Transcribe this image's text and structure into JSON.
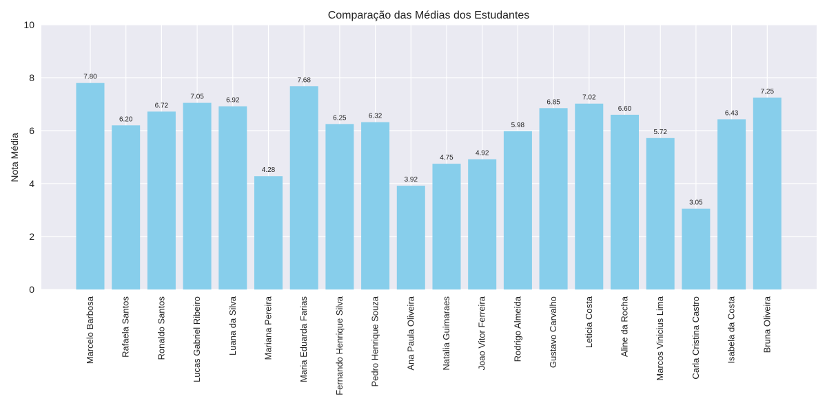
{
  "chart_data": {
    "type": "bar",
    "title": "Comparação das Médias dos Estudantes",
    "xlabel": "",
    "ylabel": "Nota Média",
    "ylim": [
      0,
      10
    ],
    "yticks": [
      "0",
      "2",
      "4",
      "6",
      "8",
      "10"
    ],
    "grid": true,
    "bar_color": "#87CEEB",
    "background_color": "#EAEAF2",
    "categories": [
      "Marcelo Barbosa",
      "Rafaela Santos",
      "Ronaldo Santos",
      "Lucas Gabriel Ribeiro",
      "Luana da Silva",
      "Mariana Pereira",
      "Maria Eduarda Farias",
      "Fernando Henrique Silva",
      "Pedro Henrique Souza",
      "Ana Paula Oliveira",
      "Natalia Guimaraes",
      "Joao Vitor Ferreira",
      "Rodrigo Almeida",
      "Gustavo Carvalho",
      "Leticia Costa",
      "Aline da Rocha",
      "Marcos Vinicius Lima",
      "Carla Cristina Castro",
      "Isabela da Costa",
      "Bruna Oliveira"
    ],
    "values": [
      7.8,
      6.2,
      6.72,
      7.05,
      6.92,
      4.28,
      7.68,
      6.25,
      6.32,
      3.92,
      4.75,
      4.92,
      5.98,
      6.85,
      7.02,
      6.6,
      5.72,
      3.05,
      6.43,
      7.25
    ],
    "value_labels": [
      "7.80",
      "6.20",
      "6.72",
      "7.05",
      "6.92",
      "4.28",
      "7.68",
      "6.25",
      "6.32",
      "3.92",
      "4.75",
      "4.92",
      "5.98",
      "6.85",
      "7.02",
      "6.60",
      "5.72",
      "3.05",
      "6.43",
      "7.25"
    ]
  }
}
